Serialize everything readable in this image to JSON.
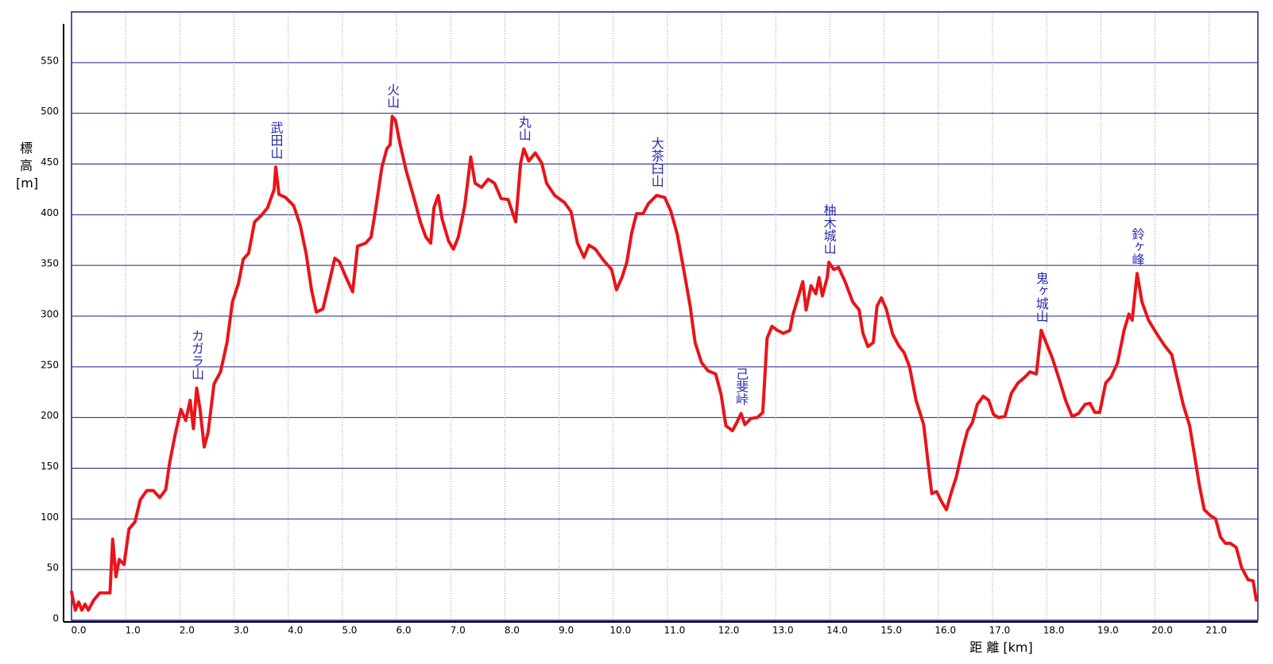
{
  "chart_data": {
    "type": "line",
    "y_label": "標高[m]",
    "x_label": "距 離 [km]",
    "color": "#e8141a",
    "grid": true,
    "xlim": [
      0,
      21.9
    ],
    "ylim": [
      0,
      600
    ],
    "xticks": [
      {
        "value": 0,
        "label": "0.0"
      },
      {
        "value": 1,
        "label": "1.0"
      },
      {
        "value": 2,
        "label": "2.0"
      },
      {
        "value": 3,
        "label": "3.0"
      },
      {
        "value": 4,
        "label": "4.0"
      },
      {
        "value": 5,
        "label": "5.0"
      },
      {
        "value": 6,
        "label": "6.0"
      },
      {
        "value": 7,
        "label": "7.0"
      },
      {
        "value": 8,
        "label": "8.0"
      },
      {
        "value": 9,
        "label": "9.0"
      },
      {
        "value": 10,
        "label": "10.0"
      },
      {
        "value": 11,
        "label": "11.0"
      },
      {
        "value": 12,
        "label": "12.0"
      },
      {
        "value": 13,
        "label": "13.0"
      },
      {
        "value": 14,
        "label": "14.0"
      },
      {
        "value": 15,
        "label": "15.0"
      },
      {
        "value": 16,
        "label": "16.0"
      },
      {
        "value": 17,
        "label": "17.0"
      },
      {
        "value": 18,
        "label": "18.0"
      },
      {
        "value": 19,
        "label": "19.0"
      },
      {
        "value": 20,
        "label": "20.0"
      },
      {
        "value": 21,
        "label": "21.0"
      }
    ],
    "yticks": [
      0,
      50,
      100,
      150,
      200,
      250,
      300,
      350,
      400,
      450,
      500,
      550
    ],
    "x": [
      0.0,
      0.07,
      0.13,
      0.19,
      0.25,
      0.31,
      0.41,
      0.52,
      0.71,
      0.76,
      0.82,
      0.88,
      0.97,
      1.06,
      1.17,
      1.27,
      1.39,
      1.51,
      1.63,
      1.74,
      1.81,
      1.92,
      2.02,
      2.11,
      2.19,
      2.25,
      2.31,
      2.37,
      2.45,
      2.52,
      2.63,
      2.75,
      2.87,
      2.97,
      3.08,
      3.17,
      3.27,
      3.38,
      3.5,
      3.62,
      3.74,
      3.77,
      3.83,
      3.95,
      4.1,
      4.22,
      4.33,
      4.43,
      4.52,
      4.64,
      4.76,
      4.86,
      4.94,
      5.07,
      5.19,
      5.28,
      5.43,
      5.53,
      5.61,
      5.73,
      5.82,
      5.88,
      5.92,
      5.98,
      6.06,
      6.18,
      6.33,
      6.44,
      6.54,
      6.63,
      6.69,
      6.77,
      6.84,
      6.96,
      7.05,
      7.14,
      7.26,
      7.37,
      7.45,
      7.57,
      7.69,
      7.81,
      7.93,
      8.06,
      8.2,
      8.29,
      8.35,
      8.44,
      8.56,
      8.68,
      8.77,
      8.92,
      9.1,
      9.22,
      9.34,
      9.46,
      9.55,
      9.67,
      9.82,
      9.97,
      10.06,
      10.16,
      10.25,
      10.34,
      10.43,
      10.55,
      10.65,
      10.8,
      10.95,
      11.06,
      11.18,
      11.3,
      11.42,
      11.51,
      11.63,
      11.75,
      11.89,
      11.99,
      12.08,
      12.2,
      12.28,
      12.36,
      12.43,
      12.54,
      12.66,
      12.76,
      12.84,
      12.93,
      13.03,
      13.14,
      13.26,
      13.32,
      13.41,
      13.5,
      13.56,
      13.65,
      13.74,
      13.8,
      13.86,
      13.95,
      13.98,
      14.07,
      14.16,
      14.28,
      14.42,
      14.54,
      14.61,
      14.7,
      14.8,
      14.87,
      14.95,
      15.04,
      15.16,
      15.28,
      15.37,
      15.47,
      15.59,
      15.73,
      15.8,
      15.88,
      15.97,
      16.06,
      16.15,
      16.24,
      16.33,
      16.45,
      16.54,
      16.63,
      16.72,
      16.83,
      16.93,
      17.02,
      17.11,
      17.23,
      17.35,
      17.47,
      17.6,
      17.69,
      17.81,
      17.9,
      17.99,
      18.11,
      18.23,
      18.35,
      18.47,
      18.59,
      18.71,
      18.8,
      18.89,
      18.98,
      19.09,
      19.19,
      19.31,
      19.43,
      19.52,
      19.58,
      19.67,
      19.76,
      19.88,
      20.04,
      20.19,
      20.31,
      20.43,
      20.52,
      20.64,
      20.73,
      20.82,
      20.91,
      21.03,
      21.12,
      21.21,
      21.3,
      21.39,
      21.5,
      21.6,
      21.72,
      21.81,
      21.87
    ],
    "values": [
      28,
      10,
      18,
      10,
      16,
      10,
      20,
      27,
      27,
      80,
      43,
      60,
      55,
      90,
      97,
      119,
      128,
      128,
      121,
      129,
      155,
      185,
      208,
      197,
      217,
      189,
      229,
      209,
      171,
      185,
      233,
      245,
      274,
      314,
      332,
      356,
      362,
      393,
      399,
      407,
      425,
      447,
      420,
      417,
      409,
      390,
      362,
      326,
      304,
      307,
      334,
      357,
      354,
      338,
      324,
      369,
      372,
      378,
      404,
      447,
      465,
      469,
      497,
      493,
      471,
      443,
      415,
      393,
      378,
      372,
      407,
      419,
      396,
      374,
      366,
      378,
      409,
      457,
      431,
      427,
      435,
      431,
      416,
      415,
      393,
      451,
      465,
      453,
      461,
      451,
      431,
      419,
      412,
      403,
      372,
      358,
      370,
      366,
      355,
      346,
      326,
      338,
      353,
      382,
      401,
      401,
      411,
      419,
      417,
      404,
      381,
      346,
      310,
      274,
      254,
      246,
      243,
      223,
      192,
      187,
      195,
      204,
      193,
      199,
      200,
      205,
      278,
      290,
      286,
      283,
      286,
      302,
      318,
      334,
      306,
      330,
      322,
      338,
      320,
      338,
      353,
      346,
      348,
      334,
      314,
      306,
      283,
      270,
      274,
      310,
      318,
      307,
      282,
      270,
      264,
      250,
      217,
      193,
      161,
      125,
      127,
      117,
      109,
      126,
      141,
      169,
      187,
      195,
      213,
      221,
      217,
      203,
      200,
      201,
      224,
      234,
      240,
      245,
      243,
      286,
      274,
      258,
      238,
      217,
      201,
      204,
      213,
      214,
      205,
      205,
      234,
      240,
      254,
      286,
      302,
      296,
      342,
      314,
      296,
      282,
      270,
      262,
      234,
      213,
      192,
      163,
      133,
      109,
      103,
      100,
      82,
      76,
      76,
      72,
      52,
      40,
      39,
      20
    ],
    "annotations": [
      {
        "text": "カガラ山",
        "x": 2.31,
        "y": 229
      },
      {
        "text": "武田山",
        "x": 3.77,
        "y": 447
      },
      {
        "text": "火山",
        "x": 5.92,
        "y": 497
      },
      {
        "text": "丸山",
        "x": 8.35,
        "y": 465
      },
      {
        "text": "大茶臼山",
        "x": 10.8,
        "y": 419
      },
      {
        "text": "己斐峠",
        "x": 12.36,
        "y": 204
      },
      {
        "text": "柚木城山",
        "x": 13.98,
        "y": 353
      },
      {
        "text": "鬼ヶ城山",
        "x": 17.9,
        "y": 286
      },
      {
        "text": "鈴ヶ峰",
        "x": 19.67,
        "y": 342
      }
    ]
  }
}
